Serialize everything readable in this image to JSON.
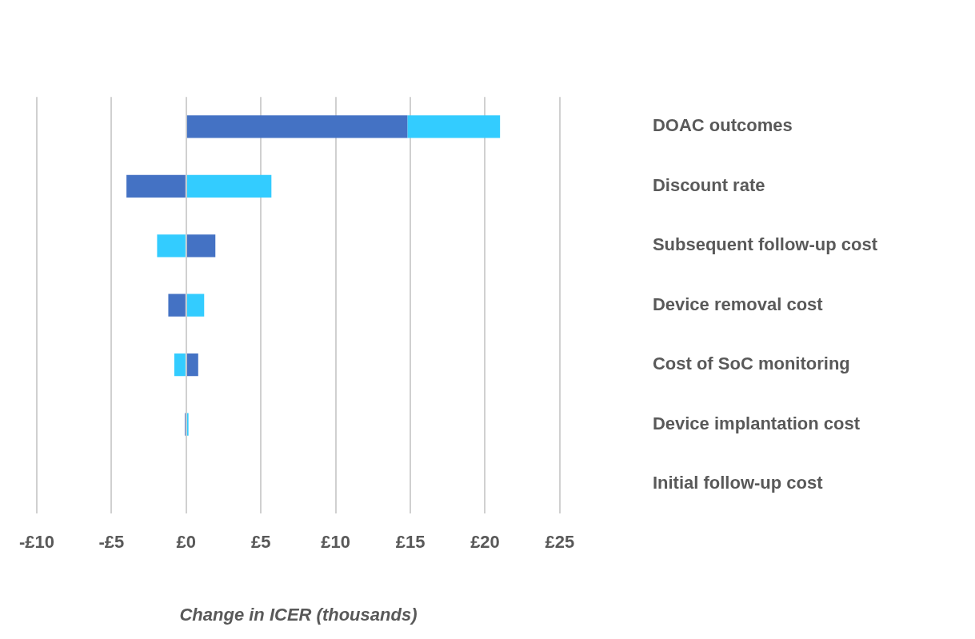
{
  "chart_data": {
    "type": "bar",
    "orientation": "horizontal",
    "stacked": true,
    "xlabel": "Change in ICER (thousands)",
    "categories": [
      "DOAC outcomes",
      "Discount rate",
      "Subsequent follow-up cost",
      "Device removal cost",
      "Cost of SoC monitoring",
      "Device implantation cost",
      "Initial follow-up cost"
    ],
    "series": [
      {
        "color": "#4472c4",
        "values": [
          14.8,
          -4.0,
          1.95,
          -1.2,
          0.8,
          -0.1,
          null
        ]
      },
      {
        "color": "#33ccff",
        "values": [
          6.2,
          5.7,
          -1.95,
          1.2,
          -0.8,
          0.15,
          null
        ]
      }
    ],
    "xlim": [
      -10,
      25
    ],
    "xticks": [
      {
        "value": -10,
        "label": "-£10"
      },
      {
        "value": -5,
        "label": "-£5"
      },
      {
        "value": 0,
        "label": "£0"
      },
      {
        "value": 5,
        "label": "£5"
      },
      {
        "value": 10,
        "label": "£10"
      },
      {
        "value": 15,
        "label": "£15"
      },
      {
        "value": 20,
        "label": "£20"
      },
      {
        "value": 25,
        "label": "£25"
      }
    ],
    "grid": "x",
    "legend": false
  }
}
